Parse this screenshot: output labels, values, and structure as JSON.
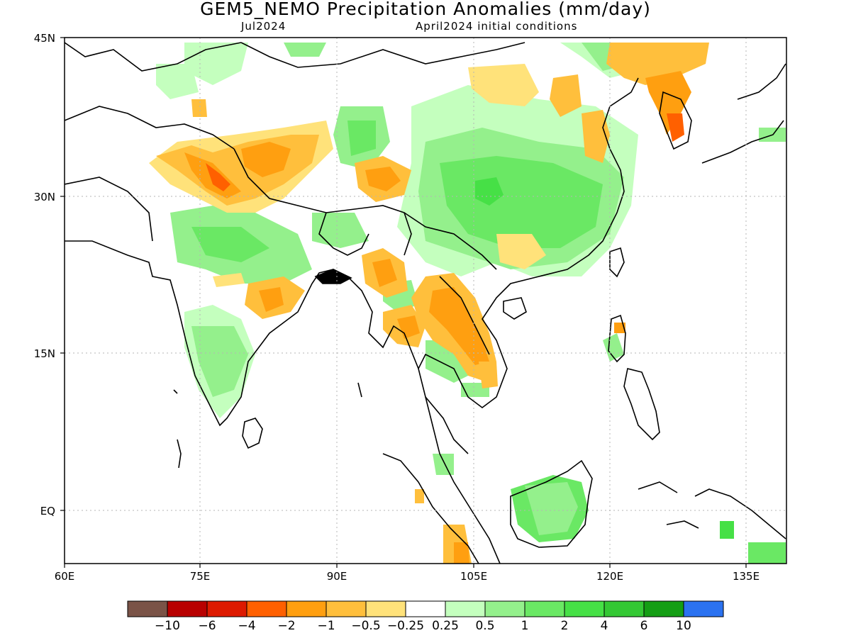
{
  "title": "GEM5_NEMO Precipitation Anomalies (mm/day)",
  "valid_month": "Jul2024",
  "initial_conditions": "April2024 initial conditions",
  "lon_labels": [
    "60E",
    "75E",
    "90E",
    "105E",
    "120E",
    "135E"
  ],
  "lat_labels": [
    "45N",
    "30N",
    "15N",
    "EQ"
  ],
  "colorbar": {
    "colors": [
      "#7a5347",
      "#b80000",
      "#dd1a00",
      "#ff6000",
      "#ff9f10",
      "#ffbf3c",
      "#ffe27a",
      "#ffffff",
      "#c4ffbe",
      "#94f08c",
      "#6ae864",
      "#46e046",
      "#34c834",
      "#149e14",
      "#2b72f0"
    ],
    "labels": [
      "-10",
      "-6",
      "-4",
      "-2",
      "-1",
      "-0.5",
      "-0.25",
      "0.25",
      "0.5",
      "1",
      "2",
      "4",
      "6",
      "10"
    ]
  },
  "colors": {
    "grid": "#b4b4b4",
    "coast": "#000000"
  }
}
